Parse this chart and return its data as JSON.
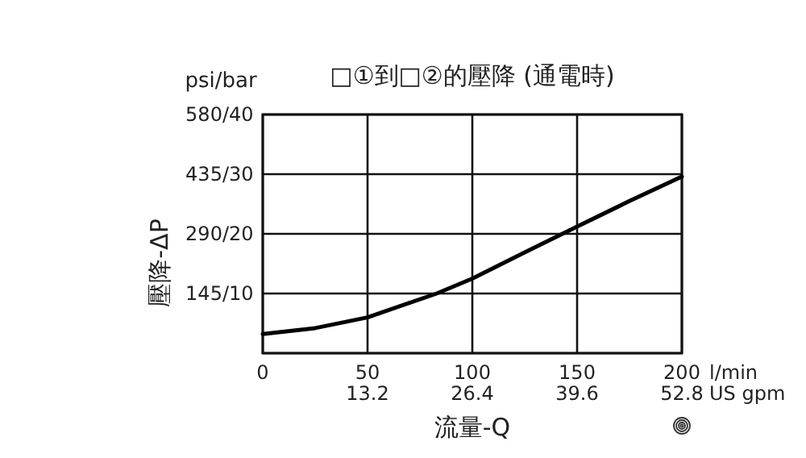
{
  "chart_data": {
    "type": "line",
    "title": "□①到□②的壓降 (通電時)",
    "xlabel": "流量-Q",
    "ylabel": "壓降-ΔP",
    "annotations": [
      "psi/bar",
      "l/min",
      "US gpm"
    ],
    "x": [
      0,
      25,
      50,
      83,
      100,
      125,
      150,
      175,
      200
    ],
    "series": [
      {
        "color": "#000000",
        "axis": "y2",
        "values": [
          3.2,
          4.2,
          6.0,
          10.0,
          12.5,
          16.9,
          21.2,
          25.5,
          29.6
        ]
      }
    ],
    "xlim": [
      0,
      200
    ],
    "y2lim": [
      0,
      40
    ],
    "xticks": [
      0,
      50,
      100,
      150,
      200
    ],
    "x2lim": [
      0,
      52.8
    ],
    "x2ticks": [
      13.2,
      26.4,
      39.6,
      52.8
    ],
    "y2ticks": [
      {
        "value": 0,
        "label": null
      },
      10,
      20,
      30,
      40
    ],
    "ylim": [
      0,
      580
    ],
    "yticks": [
      {
        "value": 145,
        "label": "145/"
      },
      {
        "value": 290,
        "label": "290/"
      },
      {
        "value": 435,
        "label": "435/"
      },
      {
        "value": 580,
        "label": "580/"
      }
    ],
    "grid": true,
    "marker": "none",
    "line_style": "solid"
  }
}
